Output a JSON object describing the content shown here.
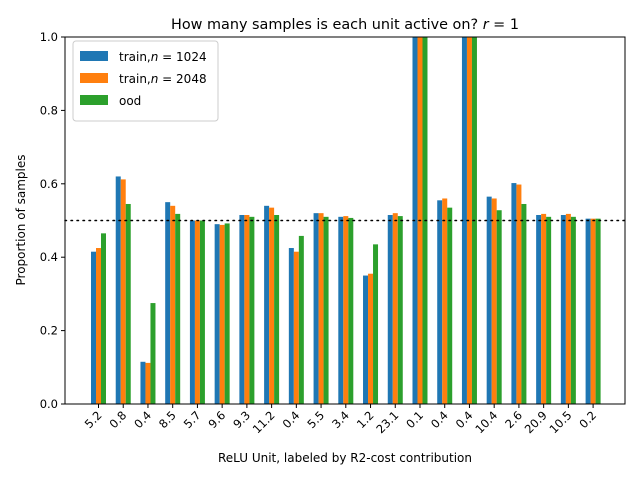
{
  "chart_data": {
    "type": "bar",
    "title": "How many samples is each unit active on? r =  1",
    "title_text": "How many samples is each unit active on? ",
    "title_var": "r",
    "title_eq": " =  1",
    "xlabel": "ReLU Unit, labeled by R2-cost contribution",
    "ylabel": "Proportion of samples",
    "ylim": [
      0,
      1.0
    ],
    "yticks": [
      "0.0",
      "0.2",
      "0.4",
      "0.6",
      "0.8",
      "1.0"
    ],
    "grid": false,
    "legend_position": "top-left",
    "reference_line": {
      "y": 0.5,
      "style": "dotted",
      "color": "#000000"
    },
    "categories": [
      "5.2",
      "0.8",
      "0.4",
      "8.5",
      "5.7",
      "9.6",
      "9.3",
      "11.2",
      "0.4",
      "5.5",
      "3.4",
      "1.2",
      "23.1",
      "0.1",
      "0.4",
      "0.4",
      "10.4",
      "2.6",
      "20.9",
      "10.5",
      "0.2"
    ],
    "series": [
      {
        "name": "train,n = 1024",
        "label_prefix": "train,",
        "label_var": "n",
        "label_eq": " = 1024",
        "color": "#1f77b4",
        "values": [
          0.415,
          0.62,
          0.115,
          0.55,
          0.5,
          0.49,
          0.515,
          0.54,
          0.425,
          0.52,
          0.51,
          0.35,
          0.515,
          1.0,
          0.555,
          1.0,
          0.565,
          0.602,
          0.515,
          0.515,
          0.505
        ]
      },
      {
        "name": "train,n = 2048",
        "label_prefix": "train,",
        "label_var": "n",
        "label_eq": " = 2048",
        "color": "#ff7f0e",
        "values": [
          0.425,
          0.612,
          0.112,
          0.54,
          0.5,
          0.488,
          0.515,
          0.535,
          0.415,
          0.52,
          0.512,
          0.355,
          0.52,
          1.0,
          0.56,
          1.0,
          0.56,
          0.598,
          0.518,
          0.518,
          0.505
        ]
      },
      {
        "name": "ood",
        "label_prefix": "ood",
        "label_var": "",
        "label_eq": "",
        "color": "#2ca02c",
        "values": [
          0.465,
          0.545,
          0.275,
          0.518,
          0.5,
          0.492,
          0.51,
          0.515,
          0.458,
          0.51,
          0.507,
          0.435,
          0.512,
          1.0,
          0.535,
          1.0,
          0.528,
          0.545,
          0.51,
          0.51,
          0.505
        ]
      }
    ]
  }
}
